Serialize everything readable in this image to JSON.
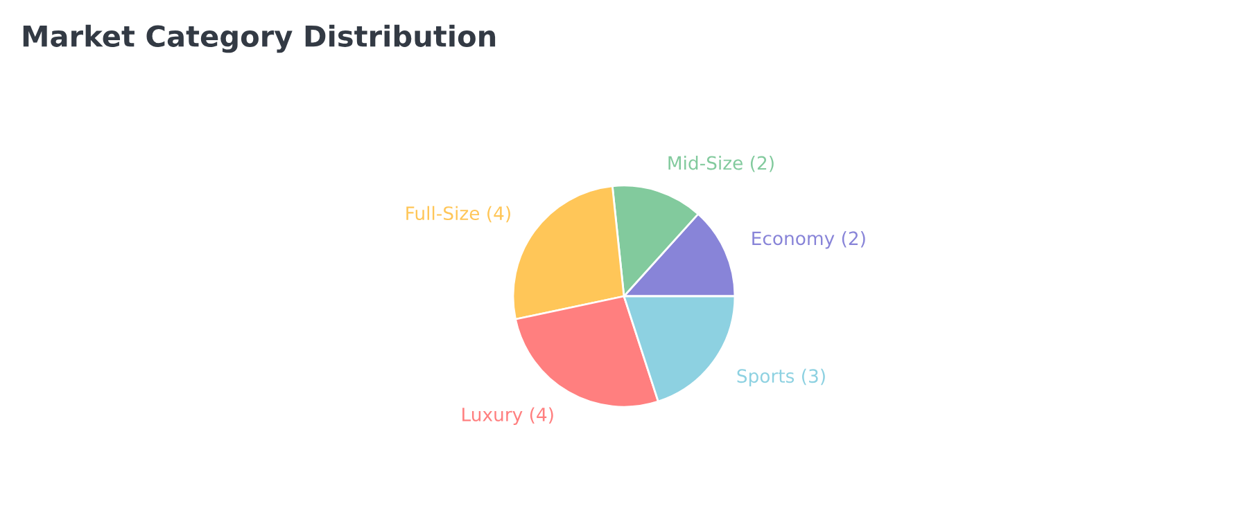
{
  "chart_data": {
    "type": "pie",
    "title": "Market Category Distribution",
    "categories": [
      "Economy",
      "Mid-Size",
      "Full-Size",
      "Luxury",
      "Sports"
    ],
    "values": [
      2,
      2,
      4,
      4,
      3
    ],
    "colors": [
      "#8884d8",
      "#82ca9d",
      "#ffc658",
      "#ff7f7f",
      "#8dd1e1"
    ],
    "value_labels": [
      "(2)",
      "(2)",
      "(4)",
      "(4)",
      "(3)"
    ]
  }
}
